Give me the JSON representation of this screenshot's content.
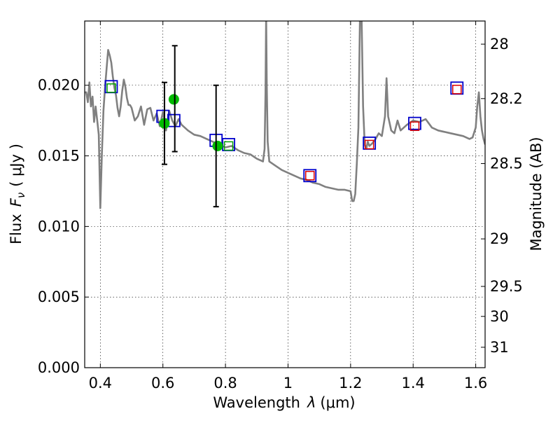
{
  "chart_data": {
    "type": "scatter",
    "xlabel_text": "Wavelength",
    "xlabel_symbol": "λ",
    "xlabel_unit": "(μm)",
    "ylabel_text": "Flux",
    "ylabel_symbol": "F",
    "ylabel_subscript": "ν",
    "ylabel_unit": "( μJy )",
    "y2label": "Magnitude (AB)",
    "xlim": [
      0.35,
      1.63
    ],
    "ylim": [
      0.0,
      0.02455
    ],
    "grid": true,
    "x_ticks": [
      0.4,
      0.6,
      0.8,
      1.0,
      1.2,
      1.4,
      1.6
    ],
    "x_tick_labels": [
      "0.4",
      "0.6",
      "0.8",
      "1",
      "1.2",
      "1.4",
      "1.6"
    ],
    "y_ticks": [
      0.0,
      0.005,
      0.01,
      0.015,
      0.02
    ],
    "y_tick_labels": [
      "0.000",
      "0.005",
      "0.010",
      "0.015",
      "0.020"
    ],
    "y2_ticks": [
      28,
      28.2,
      28.5,
      29,
      29.5,
      30,
      31
    ],
    "y2_tick_labels": [
      "28",
      "28.2",
      "28.5",
      "29",
      "29.5",
      "30",
      "31"
    ],
    "colors": {
      "model": "#808080",
      "observed": "#0000cc",
      "model_bands_blue": "#00a000",
      "model_bands_red": "#dd0000",
      "photometry": "#00bb00",
      "errorbar": "#000000"
    },
    "series": [
      {
        "kind": "line",
        "x": [
          0.35,
          0.355,
          0.36,
          0.365,
          0.37,
          0.375,
          0.38,
          0.385,
          0.39,
          0.395,
          0.4,
          0.405,
          0.41,
          0.415,
          0.42,
          0.425,
          0.43,
          0.435,
          0.44,
          0.445,
          0.45,
          0.455,
          0.46,
          0.465,
          0.47,
          0.475,
          0.48,
          0.485,
          0.49,
          0.495,
          0.5,
          0.51,
          0.52,
          0.53,
          0.54,
          0.55,
          0.56,
          0.57,
          0.58,
          0.59,
          0.6,
          0.61,
          0.62,
          0.63,
          0.64,
          0.65,
          0.66,
          0.68,
          0.7,
          0.72,
          0.74,
          0.76,
          0.78,
          0.8,
          0.82,
          0.84,
          0.86,
          0.88,
          0.9,
          0.92,
          0.925,
          0.928,
          0.93,
          0.932,
          0.935,
          0.94,
          0.96,
          0.98,
          1.0,
          1.02,
          1.04,
          1.06,
          1.08,
          1.1,
          1.12,
          1.14,
          1.16,
          1.18,
          1.2,
          1.205,
          1.21,
          1.215,
          1.22,
          1.225,
          1.23,
          1.235,
          1.24,
          1.245,
          1.25,
          1.255,
          1.26,
          1.27,
          1.28,
          1.29,
          1.3,
          1.31,
          1.315,
          1.32,
          1.33,
          1.34,
          1.35,
          1.36,
          1.38,
          1.4,
          1.42,
          1.44,
          1.46,
          1.48,
          1.5,
          1.52,
          1.54,
          1.56,
          1.58,
          1.59,
          1.6,
          1.605,
          1.61,
          1.615,
          1.62,
          1.625,
          1.63
        ],
        "y": [
          0.0195,
          0.0195,
          0.0188,
          0.0202,
          0.0185,
          0.0192,
          0.0174,
          0.0185,
          0.0175,
          0.0165,
          0.0113,
          0.0152,
          0.0182,
          0.0198,
          0.0212,
          0.0225,
          0.0221,
          0.0216,
          0.0206,
          0.0198,
          0.0193,
          0.0184,
          0.0178,
          0.0185,
          0.0196,
          0.0204,
          0.0199,
          0.0191,
          0.0186,
          0.0186,
          0.0184,
          0.0175,
          0.0178,
          0.0185,
          0.0172,
          0.0183,
          0.0184,
          0.0175,
          0.018,
          0.0171,
          0.0181,
          0.0168,
          0.0182,
          0.0175,
          0.0171,
          0.0176,
          0.0172,
          0.0168,
          0.0165,
          0.0164,
          0.0162,
          0.016,
          0.0158,
          0.0156,
          0.0157,
          0.0154,
          0.0152,
          0.0151,
          0.0148,
          0.0146,
          0.0155,
          0.0195,
          0.025,
          0.02,
          0.016,
          0.0146,
          0.0143,
          0.014,
          0.0138,
          0.0136,
          0.0134,
          0.0133,
          0.0131,
          0.013,
          0.0128,
          0.0127,
          0.0126,
          0.0126,
          0.0125,
          0.0118,
          0.0118,
          0.0123,
          0.0145,
          0.017,
          0.025,
          0.025,
          0.0185,
          0.0158,
          0.0155,
          0.016,
          0.0157,
          0.0159,
          0.0162,
          0.0166,
          0.0164,
          0.0178,
          0.0205,
          0.0178,
          0.0168,
          0.0166,
          0.0175,
          0.0168,
          0.0172,
          0.0175,
          0.0174,
          0.0176,
          0.017,
          0.0168,
          0.0167,
          0.0166,
          0.0165,
          0.0164,
          0.0162,
          0.0163,
          0.017,
          0.0185,
          0.0195,
          0.0178,
          0.0168,
          0.0162,
          0.0158
        ]
      },
      {
        "kind": "observed_squares",
        "x": [
          0.435,
          0.6,
          0.635,
          0.77,
          0.81,
          1.07,
          1.26,
          1.405,
          1.54
        ],
        "y": [
          0.0199,
          0.0178,
          0.0175,
          0.0161,
          0.0158,
          0.0136,
          0.0159,
          0.0173,
          0.0198
        ]
      },
      {
        "kind": "model_squares",
        "x": [
          0.435,
          0.81,
          1.07,
          1.26,
          1.405,
          1.54
        ],
        "y": [
          0.0198,
          0.0157,
          0.0136,
          0.0158,
          0.0171,
          0.0197
        ]
      },
      {
        "kind": "photometry_points",
        "x": [
          0.605,
          0.635,
          0.775
        ],
        "y": [
          0.0173,
          0.019,
          0.0157
        ]
      },
      {
        "kind": "errorbars",
        "x": [
          0.605,
          0.638,
          0.77
        ],
        "ylow": [
          0.0144,
          0.0153,
          0.0114
        ],
        "yhigh": [
          0.0202,
          0.0228,
          0.02
        ]
      }
    ]
  }
}
